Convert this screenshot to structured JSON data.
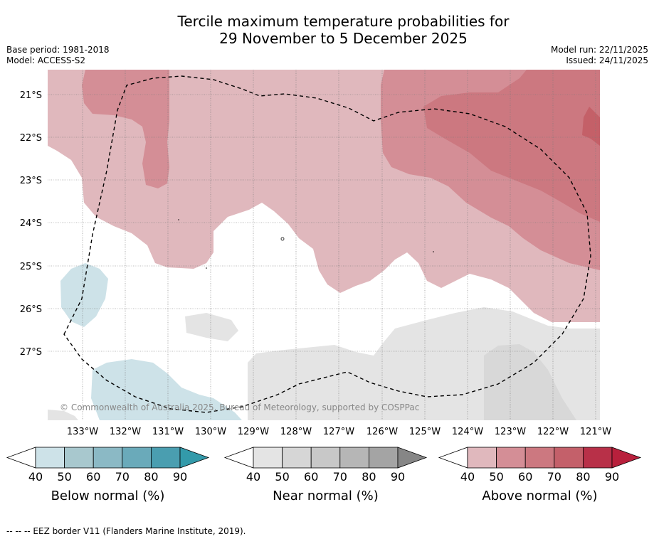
{
  "title_line1": "Tercile maximum temperature probabilities for",
  "title_line2": "29 November to 5 December 2025",
  "base_period": "Base period: 1981-2018",
  "model": "Model: ACCESS-S2",
  "model_run": "Model run: 22/11/2025",
  "issued": "Issued: 24/11/2025",
  "copyright": "© Commonwealth of Australia 2025, Bureau of Meteorology, supported by COSPPac",
  "lat_labels": [
    "21°S",
    "22°S",
    "23°S",
    "24°S",
    "25°S",
    "26°S",
    "27°S"
  ],
  "lon_labels": [
    "133°W",
    "132°W",
    "131°W",
    "130°W",
    "129°W",
    "128°W",
    "127°W",
    "126°W",
    "125°W",
    "124°W",
    "123°W",
    "122°W",
    "121°W"
  ],
  "colorbars": [
    {
      "label": "Below normal (%)",
      "ticks": [
        "40",
        "50",
        "60",
        "70",
        "80",
        "90"
      ],
      "colors": [
        "#cde2e8",
        "#a8c8ce",
        "#8bb9c5",
        "#6aaaba",
        "#4a9eb0",
        "#339aaa"
      ]
    },
    {
      "label": "Near normal (%)",
      "ticks": [
        "40",
        "50",
        "60",
        "70",
        "80",
        "90"
      ],
      "colors": [
        "#e4e4e4",
        "#d6d6d6",
        "#c8c8c8",
        "#b6b6b6",
        "#a4a4a4",
        "#868686"
      ]
    },
    {
      "label": "Above normal (%)",
      "ticks": [
        "40",
        "50",
        "60",
        "70",
        "80",
        "90"
      ],
      "colors": [
        "#e0b8bd",
        "#d48e96",
        "#cc7880",
        "#c4606a",
        "#b83048",
        "#b8203c"
      ]
    }
  ],
  "footer": "--  --  -- EEZ border V11 (Flanders Marine Institute, 2019)."
}
